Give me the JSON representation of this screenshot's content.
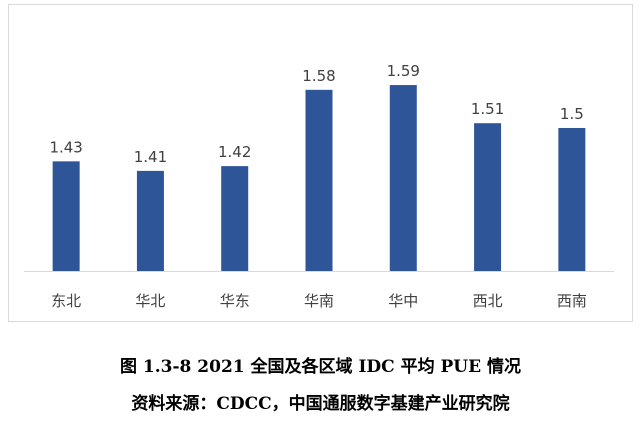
{
  "caption": {
    "title": "图 1.3-8 2021 全国及各区域 IDC 平均 PUE 情况",
    "source": "资料来源：CDCC，中国通服数字基建产业研究院"
  },
  "chart_data": {
    "type": "bar",
    "categories": [
      "东北",
      "华北",
      "华东",
      "华南",
      "华中",
      "西北",
      "西南"
    ],
    "values": [
      1.43,
      1.41,
      1.42,
      1.58,
      1.59,
      1.51,
      1.5
    ],
    "value_labels": [
      "1.43",
      "1.41",
      "1.42",
      "1.58",
      "1.59",
      "1.51",
      "1.5"
    ],
    "title": "",
    "xlabel": "",
    "ylabel": "",
    "ylim": [
      1.2,
      1.63
    ],
    "grid": false,
    "legend": "none",
    "bar_color": "#2e5597",
    "axis_color": "#d9d9d9",
    "label_color": "#404040"
  }
}
